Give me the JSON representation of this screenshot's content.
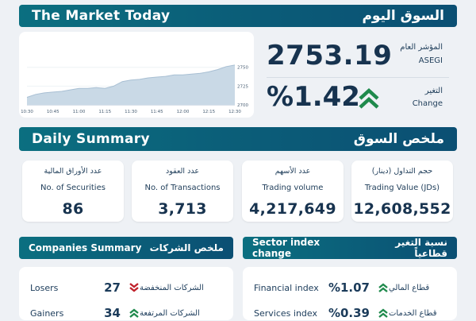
{
  "header": {
    "title_en": "The Market Today",
    "title_ar": "السوق اليوم"
  },
  "index": {
    "label_ar": "المؤشر العام",
    "label_en": "ASEGI",
    "value": "2753.19",
    "change_label_ar": "التغير",
    "change_label_en": "Change",
    "change_value": "%1.42",
    "change_direction": "up",
    "color_up": "#1f8a4c",
    "color_down": "#c0202a"
  },
  "chart_data": {
    "type": "area",
    "x_ticks": [
      "10:30",
      "10:45",
      "11:00",
      "11:15",
      "11:30",
      "11:45",
      "12:00",
      "12:15",
      "12:30"
    ],
    "y_ticks": [
      "2750",
      "2725",
      "2700"
    ],
    "ylim": [
      2700,
      2755
    ],
    "x": [
      "10:30",
      "10:35",
      "10:40",
      "10:45",
      "10:50",
      "10:55",
      "11:00",
      "11:05",
      "11:10",
      "11:15",
      "11:20",
      "11:25",
      "11:30",
      "11:35",
      "11:40",
      "11:45",
      "11:50",
      "11:55",
      "12:00",
      "12:05",
      "12:10",
      "12:15",
      "12:20",
      "12:25",
      "12:30"
    ],
    "y": [
      2710,
      2714,
      2716,
      2717,
      2718,
      2720,
      2722,
      2722,
      2723,
      2722,
      2725,
      2731,
      2733,
      2734,
      2736,
      2737,
      2738,
      2740,
      2740,
      2741,
      2742,
      2744,
      2747,
      2751,
      2753
    ]
  },
  "daily": {
    "title_en": "Daily Summary",
    "title_ar": "ملخص السوق",
    "stats": [
      {
        "ar": "عدد الأوراق المالية",
        "en": "No. of Securities",
        "value": "86"
      },
      {
        "ar": "عدد العقود",
        "en": "No. of Transactions",
        "value": "3,713"
      },
      {
        "ar": "عدد الأسهم",
        "en": "Trading volume",
        "value": "4,217,649"
      },
      {
        "ar": "حجم التداول (دينار)",
        "en": "Trading Value (JDs)",
        "value": "12,608,552"
      }
    ]
  },
  "companies": {
    "title_en": "Companies Summary",
    "title_ar": "ملخص الشركات",
    "rows": [
      {
        "en": "Losers",
        "value": "27",
        "ar": "الشركات المنخفضة",
        "direction": "down"
      },
      {
        "en": "Gainers",
        "value": "34",
        "ar": "الشركات المرتفعة",
        "direction": "up"
      }
    ]
  },
  "sectors": {
    "title_en": "Sector index change",
    "title_ar": "نسبة التغير قطاعياً",
    "rows": [
      {
        "en": "Financial index",
        "value": "%1.07",
        "ar": "قطاع المالي",
        "direction": "up"
      },
      {
        "en": "Services index",
        "value": "%0.39",
        "ar": "قطاع الخدمات",
        "direction": "up"
      }
    ]
  }
}
